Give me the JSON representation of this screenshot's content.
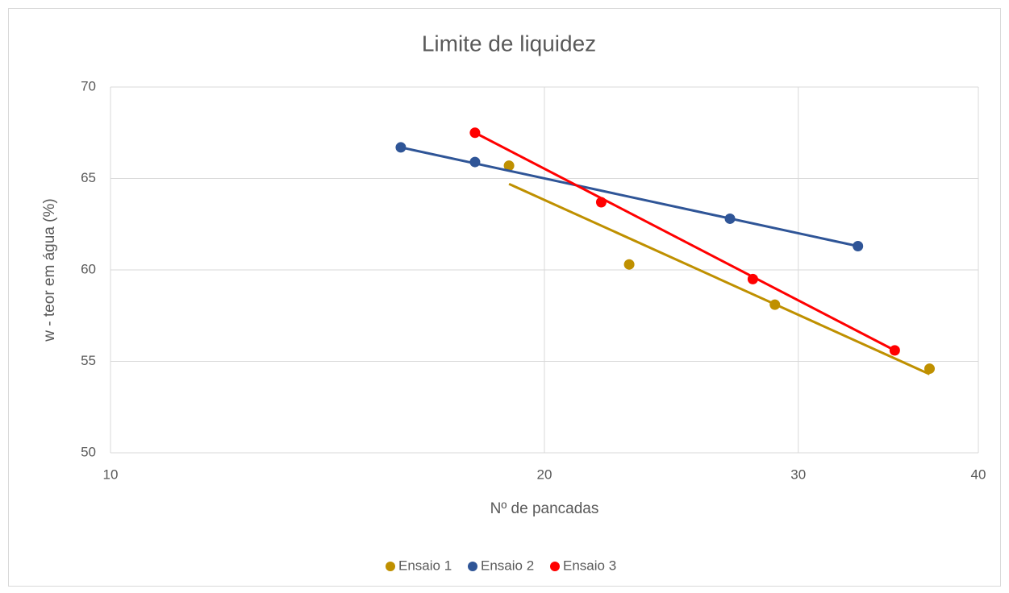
{
  "chart_data": {
    "type": "scatter",
    "title": "Limite de liquidez",
    "xlabel": "Nº de pancadas",
    "ylabel": "w - teor em água (%)",
    "xscale": "log",
    "xlim": [
      10,
      40
    ],
    "xticks": [
      10,
      20,
      30,
      40
    ],
    "ylim": [
      50,
      70
    ],
    "yticks": [
      50,
      55,
      60,
      65,
      70
    ],
    "grid": true,
    "legend": "bottom",
    "series": [
      {
        "name": "Ensaio 1",
        "color": "#bf9000",
        "x": [
          18.9,
          22.9,
          28.9,
          37.0
        ],
        "values": [
          65.7,
          60.3,
          58.1,
          54.6
        ],
        "trendline": {
          "x": [
            18.9,
            37.0
          ],
          "values": [
            64.7,
            54.3
          ]
        }
      },
      {
        "name": "Ensaio 2",
        "color": "#2f5597",
        "x": [
          15.9,
          17.9,
          26.9,
          33.0
        ],
        "values": [
          66.7,
          65.9,
          62.8,
          61.3
        ],
        "trendline": {
          "x": [
            15.9,
            33.0
          ],
          "values": [
            66.7,
            61.3
          ]
        }
      },
      {
        "name": "Ensaio 3",
        "color": "#ff0000",
        "x": [
          17.9,
          21.9,
          27.9,
          35.0
        ],
        "values": [
          67.5,
          63.7,
          59.5,
          55.6
        ],
        "trendline": {
          "x": [
            17.9,
            35.0
          ],
          "values": [
            67.5,
            55.6
          ]
        }
      }
    ]
  }
}
